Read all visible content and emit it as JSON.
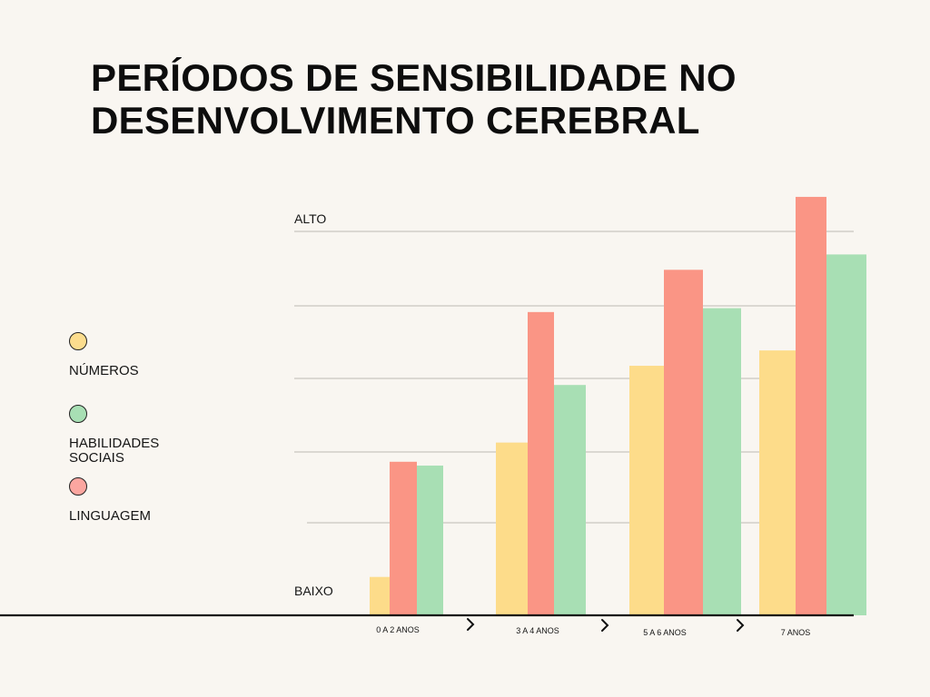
{
  "title_lines": [
    "PERÍODOS DE SENSIBILIDADE NO",
    "DESENVOLVIMENTO CEREBRAL"
  ],
  "legend": [
    {
      "label": "NÚMEROS",
      "color": "#fcdd8e"
    },
    {
      "label": "HABILIDADES SOCIAIS",
      "color": "#a8dfb4"
    },
    {
      "label": "LINGUAGEM",
      "color": "#fba6a0"
    }
  ],
  "axis": {
    "high_label": "ALTO",
    "low_label": "BAIXO"
  },
  "arrow_glyph": "›",
  "chart_data": {
    "type": "bar",
    "title": "PERÍODOS DE SENSIBILIDADE NO DESENVOLVIMENTO CEREBRAL",
    "categories": [
      "0 A 2 ANOS",
      "3 A 4 ANOS",
      "5 A 6 ANOS",
      "7 ANOS"
    ],
    "series": [
      {
        "name": "NÚMEROS",
        "color": "#fddc8a",
        "values": [
          10,
          45,
          65,
          69
        ]
      },
      {
        "name": "LINGUAGEM",
        "color": "#fa9585",
        "values": [
          40,
          79,
          90,
          109
        ]
      },
      {
        "name": "HABILIDADES SOCIAIS",
        "color": "#a8dfb4",
        "values": [
          39,
          60,
          80,
          94
        ]
      }
    ],
    "ylim": [
      0,
      100
    ],
    "yticks": [
      0,
      20,
      40,
      60,
      80,
      100
    ],
    "ytick_labels": {
      "high": "ALTO",
      "low": "BAIXO"
    },
    "grid": true,
    "legend_position": "left"
  }
}
